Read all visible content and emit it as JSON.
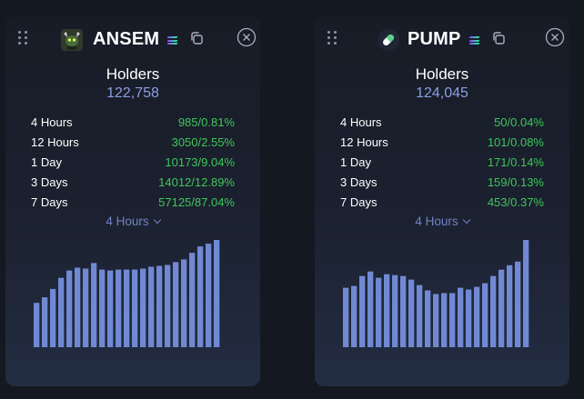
{
  "colors": {
    "positive": "#3fc65b",
    "accent": "#8c9fe0",
    "bar": "#7189d3",
    "background": "#141821"
  },
  "cards": [
    {
      "ticker": "ANSEM",
      "logo_icon": "ansem-token-logo-icon",
      "chain_icon": "solana-icon",
      "holders_label": "Holders",
      "holders_count": "122,758",
      "stats": [
        {
          "label": "4 Hours",
          "value": "985/0.81%"
        },
        {
          "label": "12 Hours",
          "value": "3050/2.55%"
        },
        {
          "label": "1 Day",
          "value": "10173/9.04%"
        },
        {
          "label": "3 Days",
          "value": "14012/12.89%"
        },
        {
          "label": "7 Days",
          "value": "57125/87.04%"
        }
      ],
      "range_select": "4 Hours",
      "chart_data": {
        "type": "bar",
        "values": [
          48,
          54,
          63,
          75,
          83,
          86,
          85,
          91,
          84,
          83,
          84,
          84,
          84,
          85,
          87,
          88,
          89,
          92,
          95,
          102,
          109,
          112,
          116
        ]
      }
    },
    {
      "ticker": "PUMP",
      "logo_icon": "pump-pill-logo-icon",
      "chain_icon": "solana-icon",
      "holders_label": "Holders",
      "holders_count": "124,045",
      "stats": [
        {
          "label": "4 Hours",
          "value": "50/0.04%"
        },
        {
          "label": "12 Hours",
          "value": "101/0.08%"
        },
        {
          "label": "1 Day",
          "value": "171/0.14%"
        },
        {
          "label": "3 Days",
          "value": "159/0.13%"
        },
        {
          "label": "7 Days",
          "value": "453/0.37%"
        }
      ],
      "range_select": "4 Hours",
      "chart_data": {
        "type": "bar",
        "values": [
          66,
          68,
          79,
          84,
          77,
          81,
          80,
          79,
          75,
          69,
          63,
          59,
          60,
          60,
          66,
          64,
          67,
          71,
          79,
          86,
          91,
          95,
          119
        ]
      }
    }
  ]
}
